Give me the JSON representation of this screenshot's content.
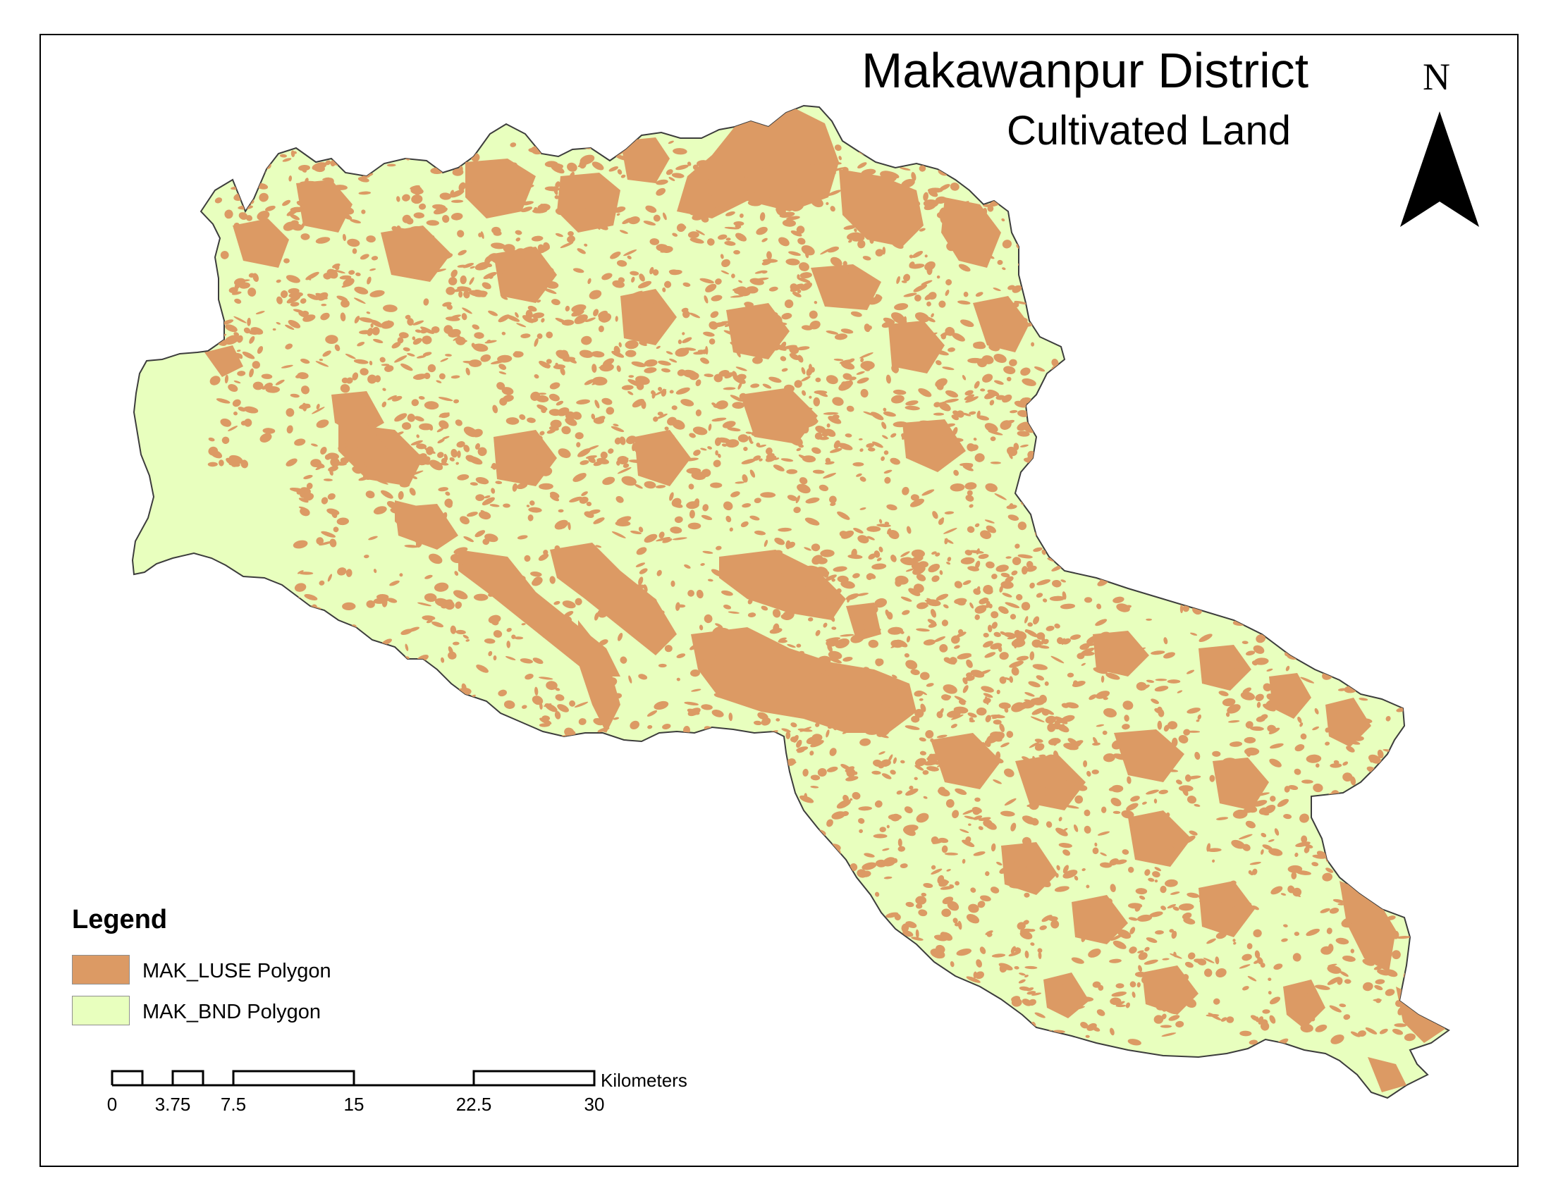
{
  "map": {
    "title": "Makawanpur District",
    "subtitle": "Cultivated  Land",
    "north_label": "N",
    "colors": {
      "district": "#e8ffbe",
      "cultivated": "#dc9a64",
      "outline": "#3c3c3c"
    }
  },
  "legend": {
    "title": "Legend",
    "items": [
      {
        "label": "MAK_LUSE Polygon",
        "color": "#dc9a64"
      },
      {
        "label": "MAK_BND Polygon",
        "color": "#e8ffbe"
      }
    ]
  },
  "scale_bar": {
    "unit": "Kilometers",
    "ticks": [
      "0",
      "3.75",
      "7.5",
      "15",
      "22.5",
      "30"
    ]
  }
}
